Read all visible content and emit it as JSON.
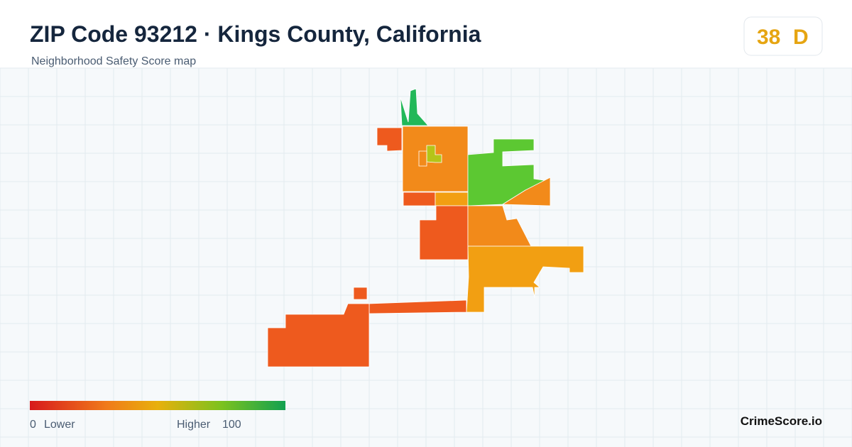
{
  "header": {
    "title": "ZIP Code 93212 · Kings County, California",
    "subtitle": "Neighborhood Safety Score map"
  },
  "score": {
    "value": "38",
    "grade": "D"
  },
  "legend": {
    "min": "0",
    "min_label": "Lower",
    "max_label": "Higher",
    "max": "100"
  },
  "brand": "CrimeScore.io"
}
